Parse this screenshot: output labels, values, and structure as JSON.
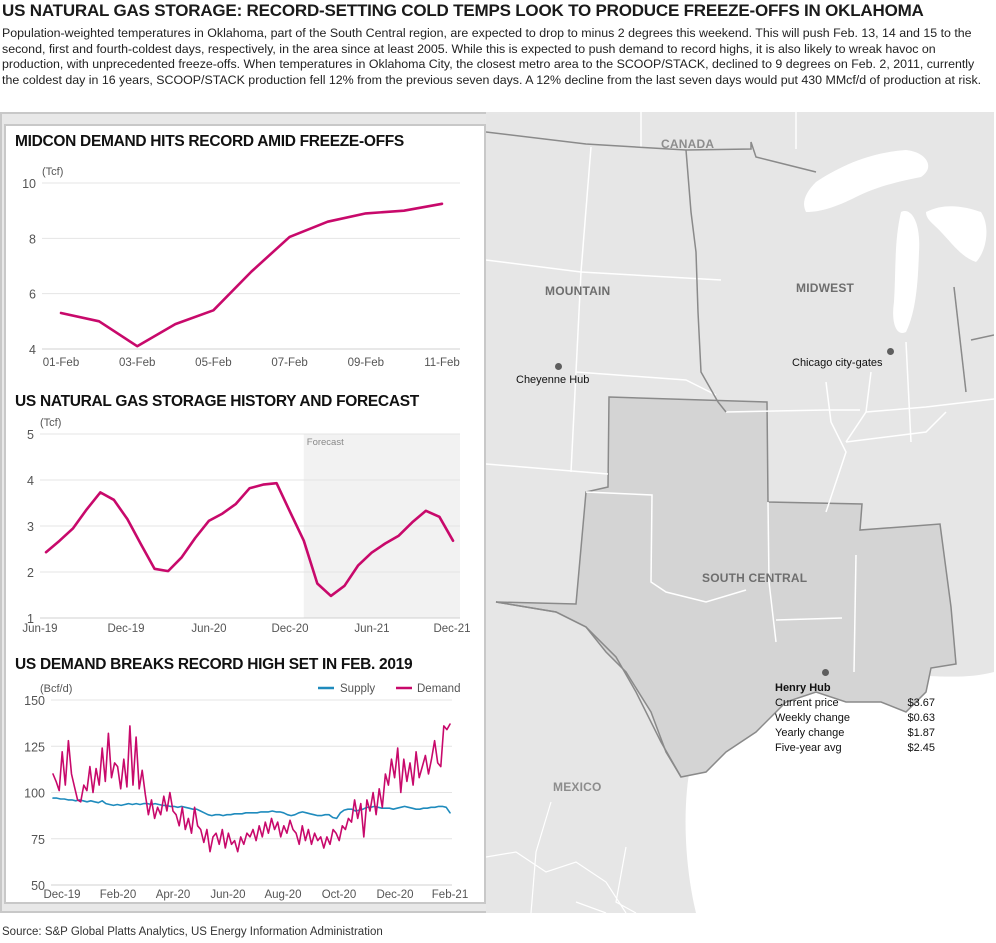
{
  "headline": "US NATURAL GAS STORAGE: RECORD-SETTING COLD TEMPS LOOK TO PRODUCE FREEZE-OFFS IN OKLAHOMA",
  "intro": "Population-weighted temperatures in Oklahoma, part of the South Central region, are expected to drop to minus 2 degrees this weekend. This will push Feb. 13, 14 and 15 to the second, first and fourth-coldest days, respectively, in the area since at least 2005. While this is expected to push demand to record highs, it is also likely to wreak havoc on production, with unprecedented freeze-offs. When temperatures in Oklahoma City, the closest metro area to the SCOOP/STACK, declined to 9 degrees on Feb. 2, 2011, currently the coldest day in 16 years, SCOOP/STACK production fell 12% from the previous seven days. A 12% decline from the last seven days would put 430 MMcf/d of production at risk.",
  "source": "Source: S&P Global Platts Analytics, US Energy Information Administration",
  "colors": {
    "demand": "#c8096b",
    "supply": "#1f8bbd",
    "grid": "#e4e4e4",
    "axis_text": "#555555",
    "forecast_bg": "#f2f2f2"
  },
  "map": {
    "regions": {
      "canada": "CANADA",
      "mountain": "MOUNTAIN",
      "midwest": "MIDWEST",
      "south_central": "SOUTH CENTRAL",
      "mexico": "MEXICO"
    },
    "hubs": {
      "cheyenne": "Cheyenne Hub",
      "chicago": "Chicago city-gates",
      "henry": "Henry Hub"
    },
    "henry_hub_stats": [
      {
        "label": "Current price",
        "value": "$3.67"
      },
      {
        "label": "Weekly change",
        "value": "$0.63"
      },
      {
        "label": "Yearly change",
        "value": "$1.87"
      },
      {
        "label": "Five-year avg",
        "value": "$2.45"
      }
    ]
  },
  "chart_data": [
    {
      "type": "line",
      "title": "MIDCON DEMAND HITS RECORD AMID FREEZE-OFFS",
      "ylabel": "(Tcf)",
      "ylim": [
        4,
        10
      ],
      "yticks": [
        "4",
        "6",
        "8",
        "10"
      ],
      "xticks": [
        "01-Feb",
        "03-Feb",
        "05-Feb",
        "07-Feb",
        "09-Feb",
        "11-Feb"
      ],
      "x": [
        "01-Feb",
        "02-Feb",
        "03-Feb",
        "04-Feb",
        "05-Feb",
        "06-Feb",
        "07-Feb",
        "08-Feb",
        "09-Feb",
        "10-Feb",
        "11-Feb"
      ],
      "series": [
        {
          "name": "Demand",
          "values": [
            5.3,
            5.0,
            4.1,
            4.9,
            5.4,
            6.8,
            8.05,
            8.6,
            8.9,
            9.0,
            9.25
          ]
        }
      ],
      "grid": true
    },
    {
      "type": "line",
      "title": "US NATURAL GAS STORAGE HISTORY AND FORECAST",
      "ylabel": "(Tcf)",
      "ylim": [
        1,
        5
      ],
      "yticks": [
        "1",
        "2",
        "3",
        "4",
        "5"
      ],
      "xticks": [
        "Jun-19",
        "Dec-19",
        "Jun-20",
        "Dec-20",
        "Jun-21",
        "Dec-21"
      ],
      "annotation": "Forecast",
      "forecast_start_index": 19,
      "x": [
        "Jun-19",
        "Jul-19",
        "Aug-19",
        "Sep-19",
        "Oct-19",
        "Nov-19",
        "Dec-19",
        "Jan-20",
        "Feb-20",
        "Mar-20",
        "Apr-20",
        "May-20",
        "Jun-20",
        "Jul-20",
        "Aug-20",
        "Sep-20",
        "Oct-20",
        "Nov-20",
        "Dec-20",
        "Jan-21",
        "Feb-21",
        "Mar-21",
        "Apr-21",
        "May-21",
        "Jun-21",
        "Jul-21",
        "Aug-21",
        "Sep-21",
        "Oct-21",
        "Nov-21",
        "Dec-21"
      ],
      "series": [
        {
          "name": "Storage",
          "values": [
            2.43,
            2.68,
            2.95,
            3.36,
            3.73,
            3.57,
            3.15,
            2.6,
            2.07,
            2.02,
            2.32,
            2.74,
            3.11,
            3.27,
            3.48,
            3.82,
            3.9,
            3.93,
            3.3,
            2.68,
            1.75,
            1.48,
            1.7,
            2.14,
            2.42,
            2.62,
            2.79,
            3.08,
            3.33,
            3.2,
            2.68
          ]
        }
      ],
      "grid": true
    },
    {
      "type": "line",
      "title": "US DEMAND BREAKS RECORD HIGH SET IN FEB. 2019",
      "ylabel": "(Bcf/d)",
      "ylim": [
        50,
        150
      ],
      "yticks": [
        "50",
        "75",
        "100",
        "125",
        "150"
      ],
      "xticks": [
        "Dec-19",
        "Feb-20",
        "Apr-20",
        "Jun-20",
        "Aug-20",
        "Oct-20",
        "Dec-20",
        "Feb-21"
      ],
      "legend": "top-right",
      "grid": true,
      "x_range": [
        "Dec-19",
        "Feb-21"
      ],
      "series": [
        {
          "name": "Supply",
          "values": [
            97,
            97,
            96.5,
            96.5,
            96,
            96,
            95.5,
            96,
            95.5,
            95,
            95.5,
            95,
            94.5,
            95.5,
            94,
            93.5,
            93,
            93.5,
            93,
            93.5,
            94,
            93.5,
            94,
            93.5,
            94,
            94,
            93.5,
            94,
            93.5,
            93,
            93,
            92.5,
            92.5,
            92,
            92.5,
            92,
            91.5,
            91,
            91,
            90,
            89,
            88,
            87.5,
            88,
            88,
            87.5,
            88,
            88,
            88.5,
            88.5,
            88.5,
            89,
            89,
            89,
            89,
            89.5,
            89.5,
            89.5,
            90,
            89.5,
            89.5,
            89,
            88,
            87.5,
            88,
            89,
            89.5,
            89,
            88.5,
            88,
            87.5,
            87.5,
            88,
            88,
            86.5,
            86,
            89,
            90.5,
            91,
            91,
            90,
            90.5,
            91,
            92,
            92,
            92.5,
            92,
            91.5,
            91.5,
            91.5,
            91,
            91.5,
            92,
            92.5,
            92,
            91.5,
            91,
            91,
            91.5,
            91.5,
            92,
            92,
            92.5,
            92.5,
            92,
            89
          ]
        },
        {
          "name": "Demand",
          "values": [
            110,
            106,
            101,
            122,
            104,
            128,
            110,
            103,
            96,
            95,
            104,
            101,
            114,
            100,
            113,
            104,
            124,
            106,
            132,
            108,
            116,
            114,
            102,
            118,
            103,
            136,
            104,
            130,
            102,
            112,
            99,
            88,
            96,
            86,
            92,
            88,
            98,
            90,
            100,
            90,
            88,
            82,
            92,
            80,
            86,
            78,
            92,
            82,
            80,
            73,
            80,
            68,
            76,
            78,
            72,
            80,
            70,
            78,
            72,
            74,
            68,
            76,
            72,
            78,
            76,
            80,
            74,
            82,
            76,
            84,
            78,
            86,
            80,
            84,
            76,
            82,
            78,
            85,
            80,
            78,
            72,
            82,
            74,
            80,
            72,
            78,
            74,
            76,
            70,
            76,
            72,
            80,
            78,
            74,
            82,
            80,
            86,
            84,
            96,
            86,
            94,
            76,
            96,
            90,
            100,
            88,
            102,
            92,
            110,
            104,
            118,
            108,
            124,
            100,
            118,
            106,
            116,
            104,
            122,
            108,
            114,
            120,
            110,
            118,
            128,
            116,
            114,
            136,
            134,
            137
          ]
        }
      ]
    }
  ]
}
